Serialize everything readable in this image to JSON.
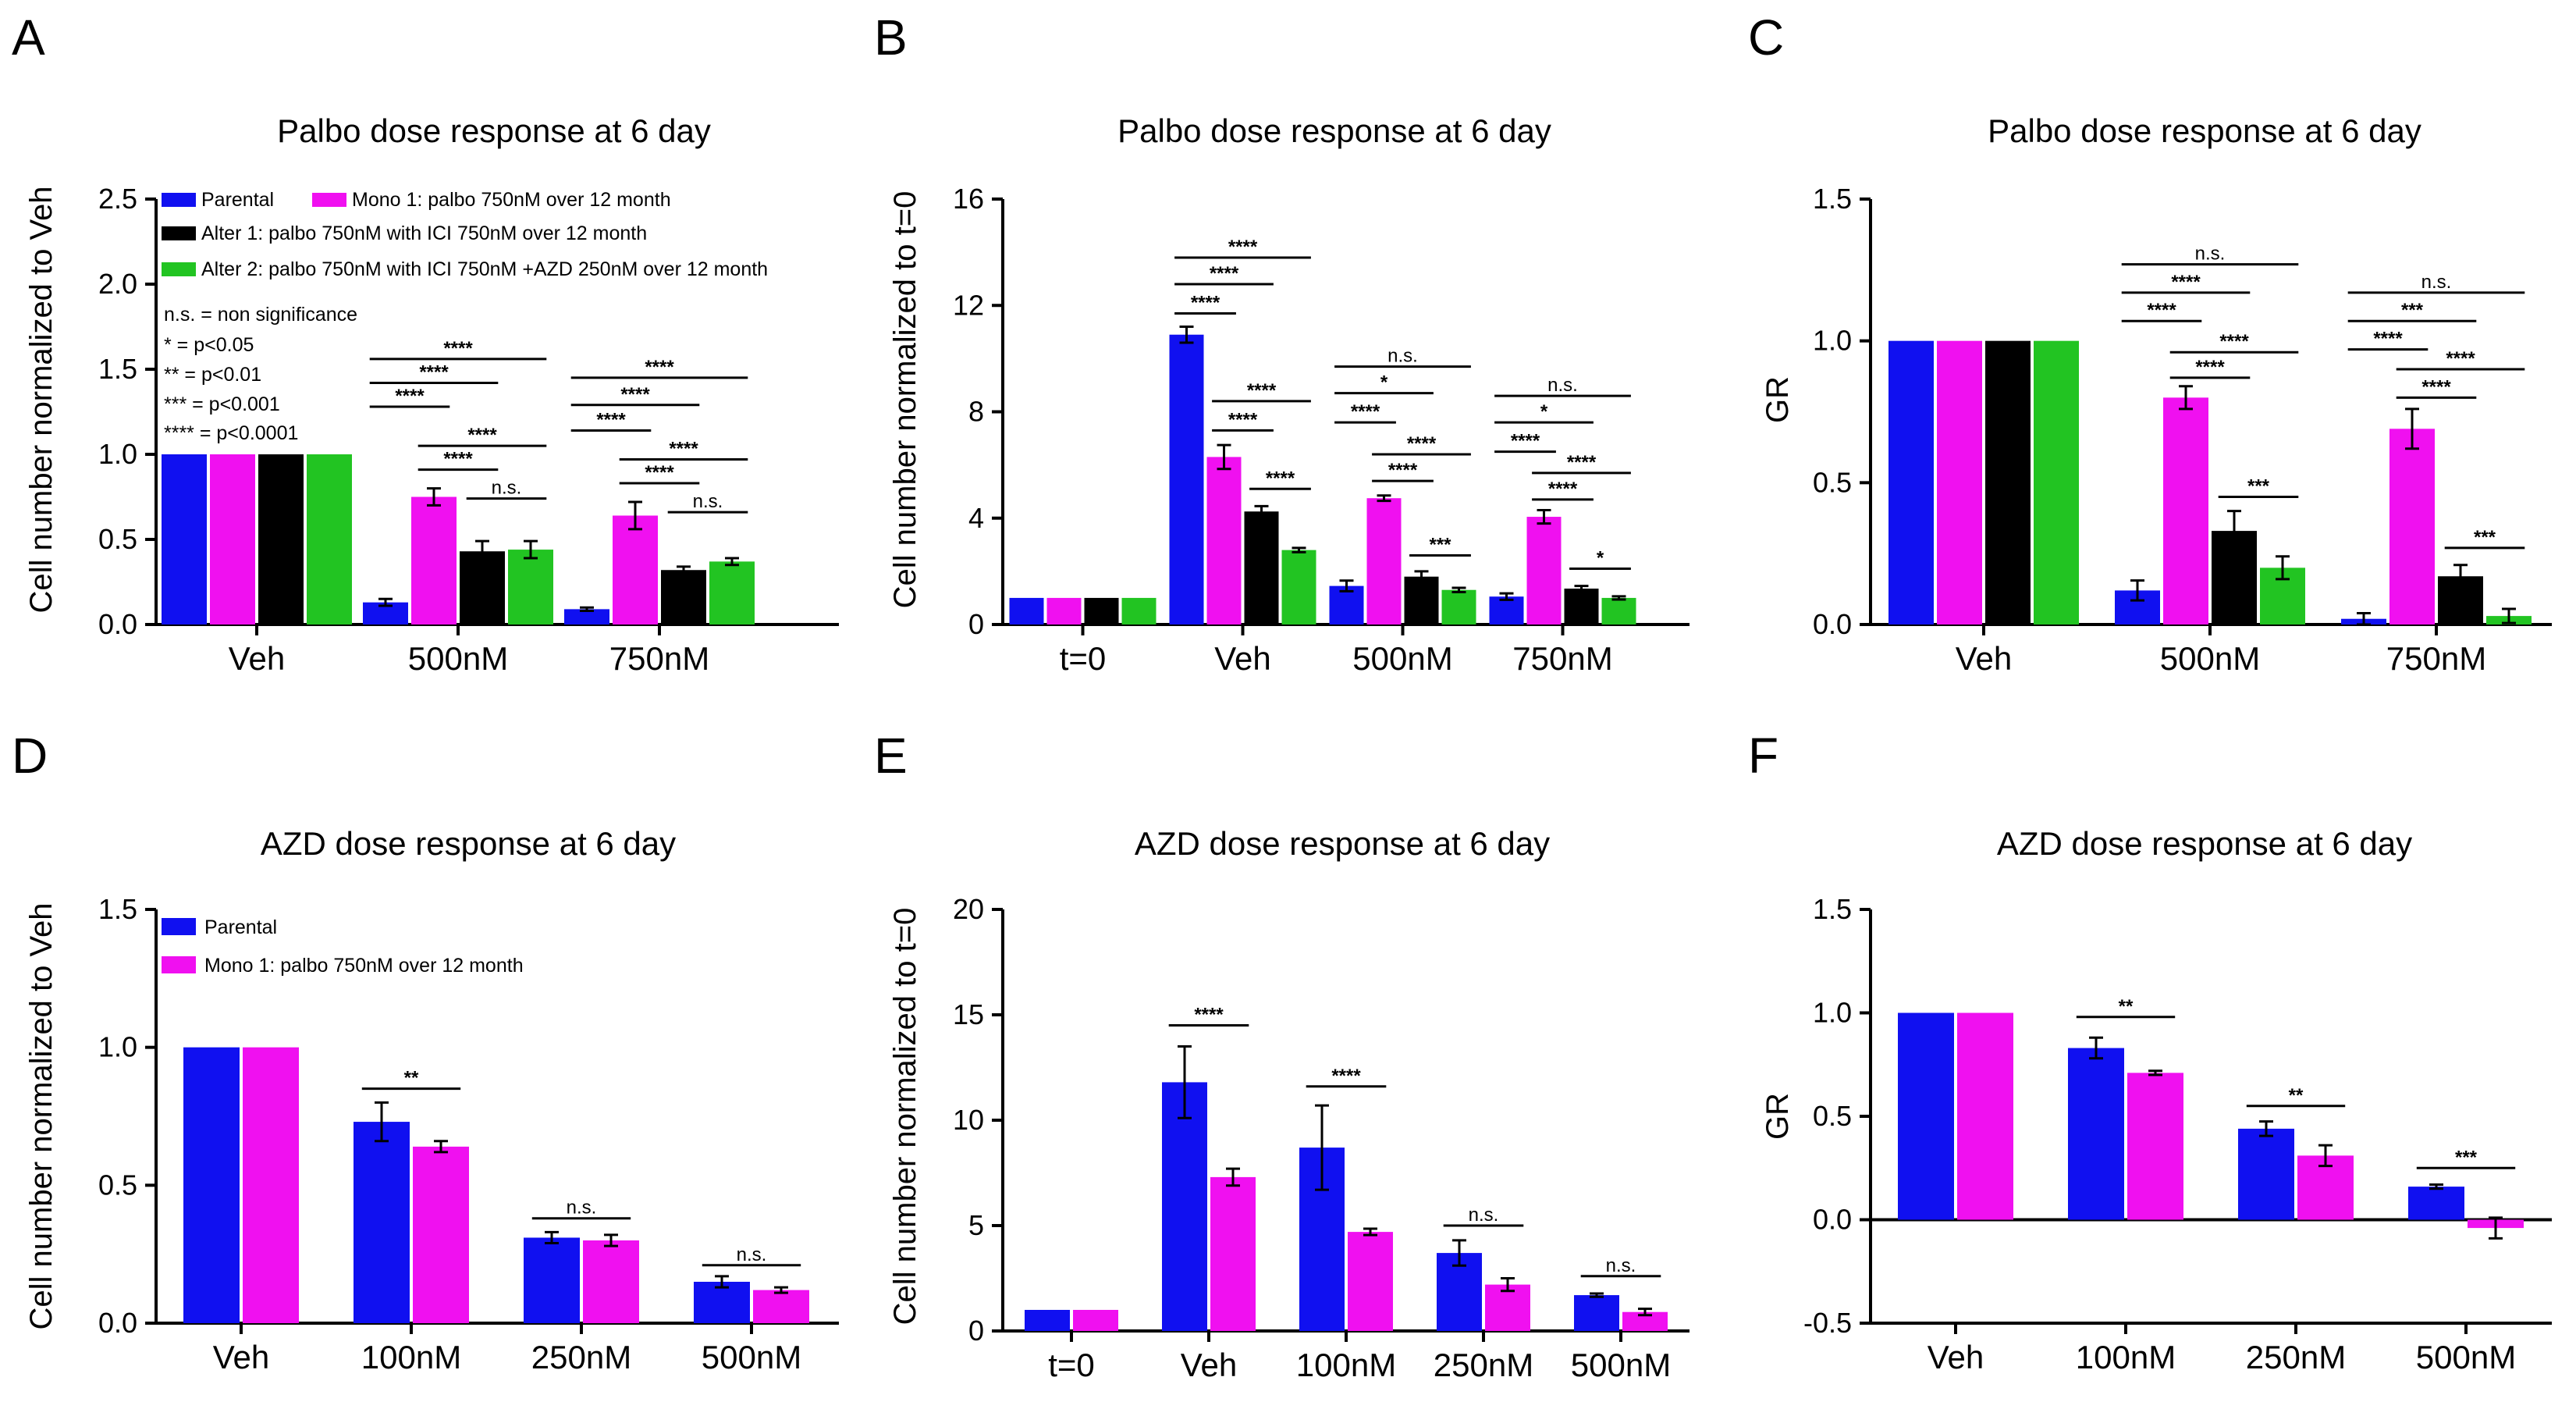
{
  "colors": {
    "parental": "#1010F0",
    "mono1": "#F010F0",
    "alter1": "#000000",
    "alter2": "#22C422"
  },
  "significance_notes": [
    "n.s. = non significance",
    "* = p<0.05",
    "** = p<0.01",
    "*** = p<0.001",
    "**** = p<0.0001"
  ],
  "chart_data": [
    {
      "panel": "A",
      "type": "bar",
      "title": "Palbo dose response at 6 day",
      "ylabel": "Cell number normalized to Veh",
      "ylim": [
        0,
        2.5
      ],
      "yticks": [
        "0.0",
        "0.5",
        "1.0",
        "1.5",
        "2.0",
        "2.5"
      ],
      "categories": [
        "Veh",
        "500nM",
        "750nM"
      ],
      "series": [
        {
          "name": "Parental",
          "color": "#1010F0",
          "values": [
            1.0,
            0.13,
            0.09
          ],
          "errors": [
            0,
            0.02,
            0.01
          ]
        },
        {
          "name": "Mono 1: palbo 750nM over 12 month",
          "color": "#F010F0",
          "values": [
            1.0,
            0.75,
            0.64
          ],
          "errors": [
            0,
            0.05,
            0.08
          ]
        },
        {
          "name": "Alter 1: palbo 750nM with ICI 750nM over 12 month",
          "color": "#000000",
          "values": [
            1.0,
            0.43,
            0.32
          ],
          "errors": [
            0,
            0.06,
            0.02
          ]
        },
        {
          "name": "Alter 2: palbo 750nM with ICI 750nM +AZD 250nM over 12 month",
          "color": "#22C422",
          "values": [
            1.0,
            0.44,
            0.37
          ],
          "errors": [
            0,
            0.05,
            0.02
          ]
        }
      ],
      "significance": [
        {
          "cat": 1,
          "from": 0,
          "to": 3,
          "y": 1.56,
          "label": "****"
        },
        {
          "cat": 1,
          "from": 0,
          "to": 2,
          "y": 1.42,
          "label": "****"
        },
        {
          "cat": 1,
          "from": 0,
          "to": 1,
          "y": 1.28,
          "label": "****"
        },
        {
          "cat": 1,
          "from": 1,
          "to": 3,
          "y": 1.05,
          "label": "****"
        },
        {
          "cat": 1,
          "from": 1,
          "to": 2,
          "y": 0.91,
          "label": "****"
        },
        {
          "cat": 1,
          "from": 2,
          "to": 3,
          "y": 0.74,
          "label": "n.s."
        },
        {
          "cat": 2,
          "from": 0,
          "to": 3,
          "y": 1.45,
          "label": "****"
        },
        {
          "cat": 2,
          "from": 0,
          "to": 2,
          "y": 1.29,
          "label": "****"
        },
        {
          "cat": 2,
          "from": 0,
          "to": 1,
          "y": 1.14,
          "label": "****"
        },
        {
          "cat": 2,
          "from": 1,
          "to": 3,
          "y": 0.97,
          "label": "****"
        },
        {
          "cat": 2,
          "from": 1,
          "to": 2,
          "y": 0.83,
          "label": "****"
        },
        {
          "cat": 2,
          "from": 2,
          "to": 3,
          "y": 0.66,
          "label": "n.s."
        }
      ]
    },
    {
      "panel": "B",
      "type": "bar",
      "title": "Palbo dose response at 6 day",
      "ylabel": "Cell number normalized to t=0",
      "ylim": [
        0,
        16
      ],
      "yticks": [
        "0",
        "4",
        "8",
        "12",
        "16"
      ],
      "categories": [
        "t=0",
        "Veh",
        "500nM",
        "750nM"
      ],
      "series": [
        {
          "name": "Parental",
          "color": "#1010F0",
          "values": [
            1.0,
            10.9,
            1.45,
            1.05
          ],
          "errors": [
            0,
            0.3,
            0.2,
            0.12
          ]
        },
        {
          "name": "Mono 1: palbo 750nM over 12 month",
          "color": "#F010F0",
          "values": [
            1.0,
            6.3,
            4.75,
            4.05
          ],
          "errors": [
            0,
            0.45,
            0.1,
            0.25
          ]
        },
        {
          "name": "Alter 1: palbo 750nM with ICI 750nM over 12 month",
          "color": "#000000",
          "values": [
            1.0,
            4.25,
            1.8,
            1.35
          ],
          "errors": [
            0,
            0.2,
            0.2,
            0.1
          ]
        },
        {
          "name": "Alter 2: palbo 750nM with ICI 750nM +AZD 250nM over 12 month",
          "color": "#22C422",
          "values": [
            1.0,
            2.8,
            1.3,
            1.0
          ],
          "errors": [
            0,
            0.08,
            0.08,
            0.06
          ]
        }
      ],
      "significance": [
        {
          "cat": 1,
          "from": 0,
          "to": 3,
          "y": 13.8,
          "label": "****"
        },
        {
          "cat": 1,
          "from": 0,
          "to": 2,
          "y": 12.8,
          "label": "****"
        },
        {
          "cat": 1,
          "from": 0,
          "to": 1,
          "y": 11.7,
          "label": "****"
        },
        {
          "cat": 1,
          "from": 1,
          "to": 3,
          "y": 8.4,
          "label": "****"
        },
        {
          "cat": 1,
          "from": 1,
          "to": 2,
          "y": 7.3,
          "label": "****"
        },
        {
          "cat": 1,
          "from": 2,
          "to": 3,
          "y": 5.1,
          "label": "****"
        },
        {
          "cat": 2,
          "from": 0,
          "to": 3,
          "y": 9.7,
          "label": "n.s."
        },
        {
          "cat": 2,
          "from": 0,
          "to": 2,
          "y": 8.7,
          "label": "*"
        },
        {
          "cat": 2,
          "from": 0,
          "to": 1,
          "y": 7.6,
          "label": "****"
        },
        {
          "cat": 2,
          "from": 1,
          "to": 3,
          "y": 6.4,
          "label": "****"
        },
        {
          "cat": 2,
          "from": 1,
          "to": 2,
          "y": 5.4,
          "label": "****"
        },
        {
          "cat": 2,
          "from": 2,
          "to": 3,
          "y": 2.6,
          "label": "***"
        },
        {
          "cat": 3,
          "from": 0,
          "to": 3,
          "y": 8.6,
          "label": "n.s."
        },
        {
          "cat": 3,
          "from": 0,
          "to": 2,
          "y": 7.6,
          "label": "*"
        },
        {
          "cat": 3,
          "from": 0,
          "to": 1,
          "y": 6.5,
          "label": "****"
        },
        {
          "cat": 3,
          "from": 1,
          "to": 3,
          "y": 5.7,
          "label": "****"
        },
        {
          "cat": 3,
          "from": 1,
          "to": 2,
          "y": 4.7,
          "label": "****"
        },
        {
          "cat": 3,
          "from": 2,
          "to": 3,
          "y": 2.1,
          "label": "*"
        }
      ]
    },
    {
      "panel": "C",
      "type": "bar",
      "title": "Palbo dose response at 6 day",
      "ylabel": "GR",
      "ylim": [
        0,
        1.5
      ],
      "yticks": [
        "0.0",
        "0.5",
        "1.0",
        "1.5"
      ],
      "categories": [
        "Veh",
        "500nM",
        "750nM"
      ],
      "series": [
        {
          "name": "Parental",
          "color": "#1010F0",
          "values": [
            1.0,
            0.12,
            0.02
          ],
          "errors": [
            0,
            0.035,
            0.02
          ]
        },
        {
          "name": "Mono 1: palbo 750nM over 12 month",
          "color": "#F010F0",
          "values": [
            1.0,
            0.8,
            0.69
          ],
          "errors": [
            0,
            0.04,
            0.07
          ]
        },
        {
          "name": "Alter 1: palbo 750nM with ICI 750nM over 12 month",
          "color": "#000000",
          "values": [
            1.0,
            0.33,
            0.17
          ],
          "errors": [
            0,
            0.07,
            0.04
          ]
        },
        {
          "name": "Alter 2: palbo 750nM with ICI 750nM +AZD 250nM over 12 month",
          "color": "#22C422",
          "values": [
            1.0,
            0.2,
            0.03
          ],
          "errors": [
            0,
            0.04,
            0.025
          ]
        }
      ],
      "significance": [
        {
          "cat": 1,
          "from": 0,
          "to": 3,
          "y": 1.27,
          "label": "n.s."
        },
        {
          "cat": 1,
          "from": 0,
          "to": 2,
          "y": 1.17,
          "label": "****"
        },
        {
          "cat": 1,
          "from": 0,
          "to": 1,
          "y": 1.07,
          "label": "****"
        },
        {
          "cat": 1,
          "from": 1,
          "to": 3,
          "y": 0.96,
          "label": "****"
        },
        {
          "cat": 1,
          "from": 1,
          "to": 2,
          "y": 0.87,
          "label": "****"
        },
        {
          "cat": 1,
          "from": 2,
          "to": 3,
          "y": 0.45,
          "label": "***"
        },
        {
          "cat": 2,
          "from": 0,
          "to": 3,
          "y": 1.17,
          "label": "n.s."
        },
        {
          "cat": 2,
          "from": 0,
          "to": 2,
          "y": 1.07,
          "label": "***"
        },
        {
          "cat": 2,
          "from": 0,
          "to": 1,
          "y": 0.97,
          "label": "****"
        },
        {
          "cat": 2,
          "from": 1,
          "to": 3,
          "y": 0.9,
          "label": "****"
        },
        {
          "cat": 2,
          "from": 1,
          "to": 2,
          "y": 0.8,
          "label": "****"
        },
        {
          "cat": 2,
          "from": 2,
          "to": 3,
          "y": 0.27,
          "label": "***"
        }
      ]
    },
    {
      "panel": "D",
      "type": "bar",
      "title": "AZD dose response at 6 day",
      "ylabel": "Cell number normalized to Veh",
      "ylim": [
        0,
        1.5
      ],
      "yticks": [
        "0.0",
        "0.5",
        "1.0",
        "1.5"
      ],
      "categories": [
        "Veh",
        "100nM",
        "250nM",
        "500nM"
      ],
      "series": [
        {
          "name": "Parental",
          "color": "#1010F0",
          "values": [
            1.0,
            0.73,
            0.31,
            0.15
          ],
          "errors": [
            0,
            0.07,
            0.02,
            0.02
          ]
        },
        {
          "name": "Mono 1: palbo 750nM over 12 month",
          "color": "#F010F0",
          "values": [
            1.0,
            0.64,
            0.3,
            0.12
          ],
          "errors": [
            0,
            0.02,
            0.02,
            0.01
          ]
        }
      ],
      "significance": [
        {
          "cat": 1,
          "from": 0,
          "to": 1,
          "y": 0.85,
          "label": "**"
        },
        {
          "cat": 2,
          "from": 0,
          "to": 1,
          "y": 0.38,
          "label": "n.s."
        },
        {
          "cat": 3,
          "from": 0,
          "to": 1,
          "y": 0.21,
          "label": "n.s."
        }
      ]
    },
    {
      "panel": "E",
      "type": "bar",
      "title": "AZD dose response at 6 day",
      "ylabel": "Cell number normalized to t=0",
      "ylim": [
        0,
        20
      ],
      "yticks": [
        "0",
        "5",
        "10",
        "15",
        "20"
      ],
      "categories": [
        "t=0",
        "Veh",
        "100nM",
        "250nM",
        "500nM"
      ],
      "series": [
        {
          "name": "Parental",
          "color": "#1010F0",
          "values": [
            1.0,
            11.8,
            8.7,
            3.7,
            1.7
          ],
          "errors": [
            0,
            1.7,
            2.0,
            0.6,
            0.08
          ]
        },
        {
          "name": "Mono 1: palbo 750nM over 12 month",
          "color": "#F010F0",
          "values": [
            1.0,
            7.3,
            4.7,
            2.2,
            0.9
          ],
          "errors": [
            0,
            0.4,
            0.15,
            0.3,
            0.15
          ]
        }
      ],
      "significance": [
        {
          "cat": 1,
          "from": 0,
          "to": 1,
          "y": 14.5,
          "label": "****"
        },
        {
          "cat": 2,
          "from": 0,
          "to": 1,
          "y": 11.6,
          "label": "****"
        },
        {
          "cat": 3,
          "from": 0,
          "to": 1,
          "y": 5.0,
          "label": "n.s."
        },
        {
          "cat": 4,
          "from": 0,
          "to": 1,
          "y": 2.6,
          "label": "n.s."
        }
      ]
    },
    {
      "panel": "F",
      "type": "bar",
      "title": "AZD dose response at 6 day",
      "ylabel": "GR",
      "ylim": [
        -0.5,
        1.5
      ],
      "yticks": [
        "-0.5",
        "0.0",
        "0.5",
        "1.0",
        "1.5"
      ],
      "categories": [
        "Veh",
        "100nM",
        "250nM",
        "500nM"
      ],
      "series": [
        {
          "name": "Parental",
          "color": "#1010F0",
          "values": [
            1.0,
            0.83,
            0.44,
            0.16
          ],
          "errors": [
            0,
            0.05,
            0.035,
            0.01
          ]
        },
        {
          "name": "Mono 1: palbo 750nM over 12 month",
          "color": "#F010F0",
          "values": [
            1.0,
            0.71,
            0.31,
            -0.04
          ],
          "errors": [
            0,
            0.01,
            0.05,
            0.05
          ]
        }
      ],
      "significance": [
        {
          "cat": 1,
          "from": 0,
          "to": 1,
          "y": 0.98,
          "label": "**"
        },
        {
          "cat": 2,
          "from": 0,
          "to": 1,
          "y": 0.55,
          "label": "**"
        },
        {
          "cat": 3,
          "from": 0,
          "to": 1,
          "y": 0.25,
          "label": "***"
        }
      ]
    }
  ]
}
